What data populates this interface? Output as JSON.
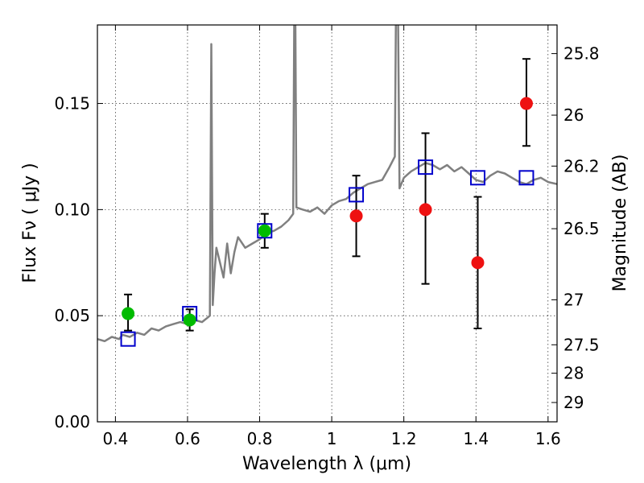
{
  "chart_data": {
    "type": "scatter",
    "xlabel": "Wavelength  λ (μm)",
    "ylabel": "Flux  Fν  ( μJy )",
    "ylabel_right": "Magnitude (AB)",
    "xlim": [
      0.35,
      1.625
    ],
    "ylim": [
      0.0,
      0.187
    ],
    "grid": true,
    "x_ticks": [
      0.4,
      0.6,
      0.8,
      1.0,
      1.2,
      1.4,
      1.6
    ],
    "x_tick_labels": [
      "0.4",
      "0.6",
      "0.8",
      "1",
      "1.2",
      "1.4",
      "1.6"
    ],
    "y_ticks": [
      0.0,
      0.05,
      0.1,
      0.15
    ],
    "y_tick_labels": [
      "0.00",
      "0.05",
      "0.10",
      "0.15"
    ],
    "right_ticks": [
      {
        "label": "25.8",
        "flux": 0.1735
      },
      {
        "label": "26",
        "flux": 0.1445
      },
      {
        "label": "26.2",
        "flux": 0.1205
      },
      {
        "label": "26.5",
        "flux": 0.091
      },
      {
        "label": "27",
        "flux": 0.0575
      },
      {
        "label": "27.5",
        "flux": 0.0363
      },
      {
        "label": "28",
        "flux": 0.0229
      },
      {
        "label": "29",
        "flux": 0.0091
      }
    ],
    "spectrum": {
      "color": "#808080",
      "points": [
        [
          0.35,
          0.039
        ],
        [
          0.37,
          0.038
        ],
        [
          0.39,
          0.04
        ],
        [
          0.41,
          0.039
        ],
        [
          0.42,
          0.041
        ],
        [
          0.44,
          0.04
        ],
        [
          0.46,
          0.042
        ],
        [
          0.48,
          0.041
        ],
        [
          0.5,
          0.044
        ],
        [
          0.52,
          0.043
        ],
        [
          0.54,
          0.045
        ],
        [
          0.56,
          0.046
        ],
        [
          0.58,
          0.047
        ],
        [
          0.6,
          0.046
        ],
        [
          0.62,
          0.048
        ],
        [
          0.64,
          0.047
        ],
        [
          0.655,
          0.049
        ],
        [
          0.662,
          0.05
        ],
        [
          0.666,
          0.178
        ],
        [
          0.67,
          0.055
        ],
        [
          0.675,
          0.07
        ],
        [
          0.68,
          0.082
        ],
        [
          0.69,
          0.075
        ],
        [
          0.7,
          0.068
        ],
        [
          0.71,
          0.084
        ],
        [
          0.72,
          0.07
        ],
        [
          0.73,
          0.08
        ],
        [
          0.74,
          0.087
        ],
        [
          0.76,
          0.082
        ],
        [
          0.78,
          0.084
        ],
        [
          0.8,
          0.086
        ],
        [
          0.82,
          0.089
        ],
        [
          0.84,
          0.09
        ],
        [
          0.86,
          0.092
        ],
        [
          0.88,
          0.095
        ],
        [
          0.893,
          0.098
        ],
        [
          0.896,
          0.19
        ],
        [
          0.899,
          0.19
        ],
        [
          0.902,
          0.101
        ],
        [
          0.92,
          0.1
        ],
        [
          0.94,
          0.099
        ],
        [
          0.96,
          0.101
        ],
        [
          0.98,
          0.098
        ],
        [
          1.0,
          0.102
        ],
        [
          1.02,
          0.104
        ],
        [
          1.04,
          0.105
        ],
        [
          1.06,
          0.108
        ],
        [
          1.08,
          0.11
        ],
        [
          1.1,
          0.112
        ],
        [
          1.12,
          0.113
        ],
        [
          1.14,
          0.114
        ],
        [
          1.16,
          0.12
        ],
        [
          1.175,
          0.125
        ],
        [
          1.178,
          0.19
        ],
        [
          1.184,
          0.19
        ],
        [
          1.188,
          0.11
        ],
        [
          1.2,
          0.115
        ],
        [
          1.22,
          0.118
        ],
        [
          1.24,
          0.12
        ],
        [
          1.26,
          0.122
        ],
        [
          1.28,
          0.121
        ],
        [
          1.3,
          0.119
        ],
        [
          1.32,
          0.121
        ],
        [
          1.34,
          0.118
        ],
        [
          1.36,
          0.12
        ],
        [
          1.38,
          0.117
        ],
        [
          1.4,
          0.114
        ],
        [
          1.42,
          0.113
        ],
        [
          1.44,
          0.116
        ],
        [
          1.46,
          0.118
        ],
        [
          1.48,
          0.117
        ],
        [
          1.5,
          0.115
        ],
        [
          1.52,
          0.113
        ],
        [
          1.54,
          0.112
        ],
        [
          1.56,
          0.114
        ],
        [
          1.58,
          0.115
        ],
        [
          1.6,
          0.113
        ],
        [
          1.625,
          0.112
        ]
      ]
    },
    "series": [
      {
        "marker": "square",
        "color": "#0000cc",
        "points": [
          {
            "x": 0.435,
            "y": 0.039
          },
          {
            "x": 0.606,
            "y": 0.051
          },
          {
            "x": 0.814,
            "y": 0.09
          },
          {
            "x": 1.068,
            "y": 0.107
          },
          {
            "x": 1.26,
            "y": 0.12
          },
          {
            "x": 1.405,
            "y": 0.115
          },
          {
            "x": 1.54,
            "y": 0.115
          }
        ]
      },
      {
        "marker": "circle",
        "color": "#00bb00",
        "points": [
          {
            "x": 0.435,
            "y": 0.051,
            "yerr_low": 0.043,
            "yerr_high": 0.06
          },
          {
            "x": 0.606,
            "y": 0.048,
            "yerr_low": 0.043,
            "yerr_high": 0.053
          },
          {
            "x": 0.814,
            "y": 0.09,
            "yerr_low": 0.082,
            "yerr_high": 0.098
          }
        ]
      },
      {
        "marker": "circle",
        "color": "#ee1111",
        "points": [
          {
            "x": 1.068,
            "y": 0.097,
            "yerr_low": 0.078,
            "yerr_high": 0.116
          },
          {
            "x": 1.26,
            "y": 0.1,
            "yerr_low": 0.065,
            "yerr_high": 0.136
          },
          {
            "x": 1.405,
            "y": 0.075,
            "yerr_low": 0.044,
            "yerr_high": 0.106
          },
          {
            "x": 1.54,
            "y": 0.15,
            "yerr_low": 0.13,
            "yerr_high": 0.171
          }
        ]
      }
    ]
  }
}
